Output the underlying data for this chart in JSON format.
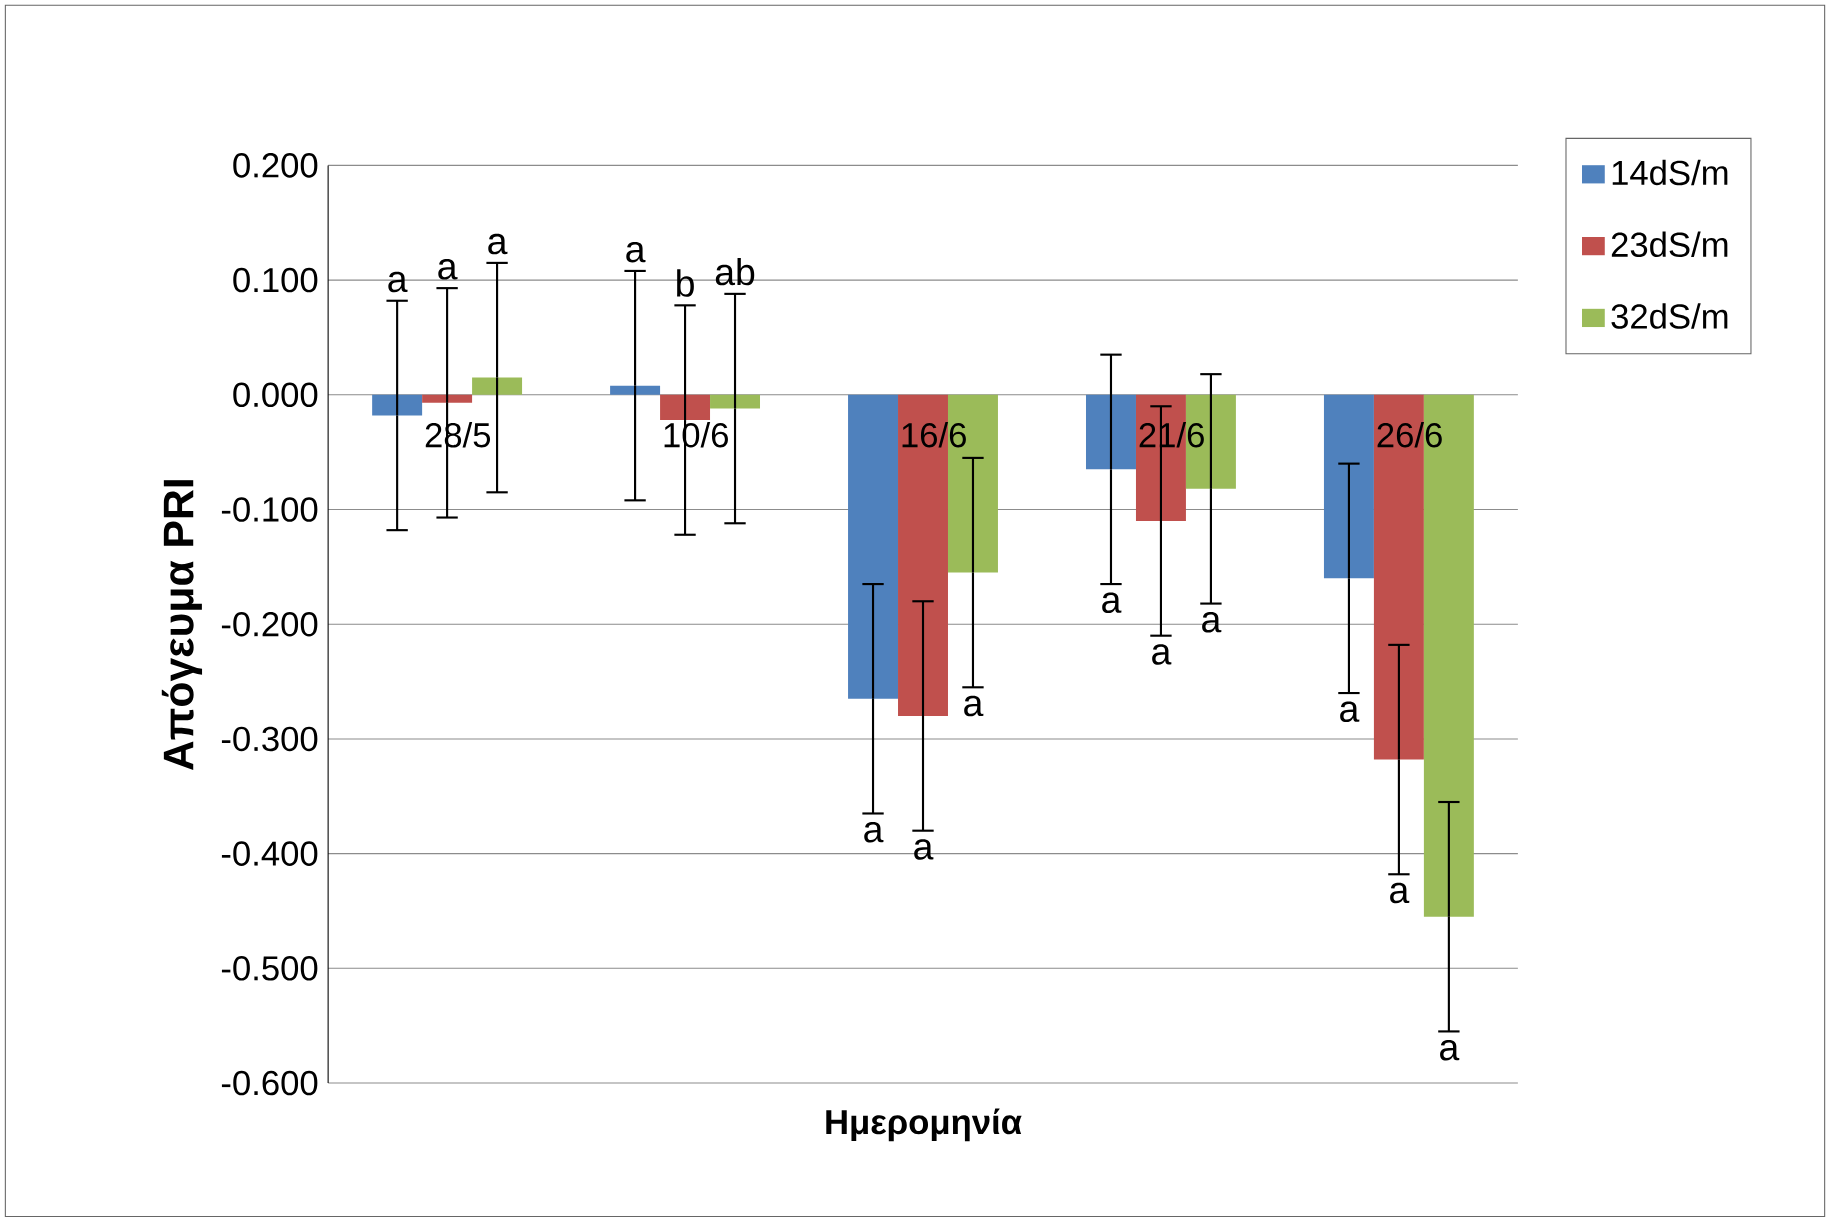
{
  "chart_data": {
    "type": "bar",
    "xlabel": "Ημερομηνία",
    "ylabel": "Απόγευμα PRI",
    "categories": [
      "28/5",
      "10/6",
      "16/6",
      "21/6",
      "26/6"
    ],
    "series": [
      {
        "name": "14dS/m",
        "color": "#4f81bd",
        "values": [
          -0.018,
          0.008,
          -0.265,
          -0.065,
          -0.16
        ],
        "errors": [
          0.1,
          0.1,
          0.1,
          0.1,
          0.1
        ]
      },
      {
        "name": "23dS/m",
        "color": "#c0504d",
        "values": [
          -0.007,
          -0.022,
          -0.28,
          -0.11,
          -0.318
        ],
        "errors": [
          0.1,
          0.1,
          0.1,
          0.1,
          0.1
        ]
      },
      {
        "name": "32dS/m",
        "color": "#9bbb59",
        "values": [
          0.015,
          -0.012,
          -0.155,
          -0.082,
          -0.455
        ],
        "errors": [
          0.1,
          0.1,
          0.1,
          0.1,
          0.1
        ]
      }
    ],
    "ylim": [
      -0.6,
      0.2
    ],
    "yticks": [
      {
        "value": -0.6,
        "label": "-0.600"
      },
      {
        "value": -0.5,
        "label": "-0.500"
      },
      {
        "value": -0.4,
        "label": "-0.400"
      },
      {
        "value": -0.3,
        "label": "-0.300"
      },
      {
        "value": -0.2,
        "label": "-0.200"
      },
      {
        "value": -0.1,
        "label": "-0.100"
      },
      {
        "value": 0,
        "label": "0.000"
      },
      {
        "value": 0.1,
        "label": "0.100"
      },
      {
        "value": 0.2,
        "label": "0.200"
      }
    ],
    "grid": "y",
    "legend": "top right",
    "annotations": [
      "a",
      "a",
      "a",
      "a",
      "b",
      "ab",
      "a",
      "a",
      "a",
      "a",
      "a",
      "a",
      "a",
      "a",
      "a"
    ]
  }
}
